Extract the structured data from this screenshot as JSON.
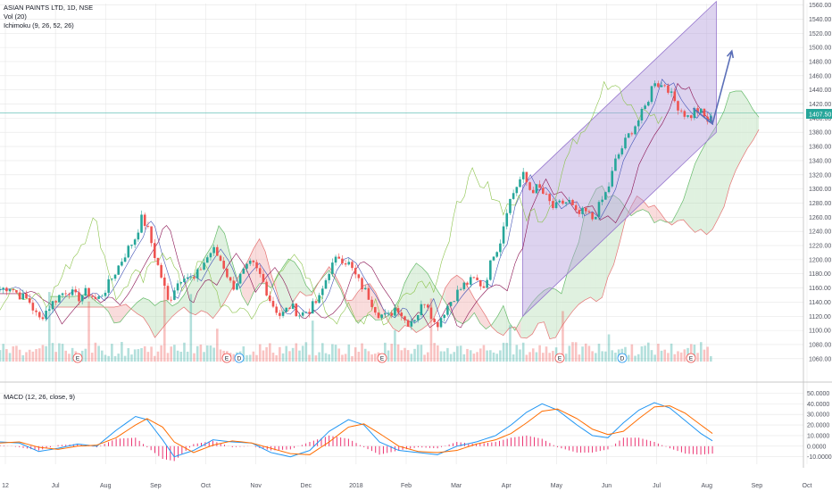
{
  "header": {
    "symbol_line": "ASIAN PAINTS LTD, 1D, NSE",
    "volume_label": "Vol (20)",
    "ichimoku_label": "Ichimoku (9, 26, 52, 26)"
  },
  "macd_panel": {
    "label": "MACD (12, 26, close, 9)"
  },
  "price_tag": "1407.50",
  "colors": {
    "up": "#26a69a",
    "down": "#ef5350",
    "channel_fill": "#b39ddb",
    "channel_stroke": "#9575cd",
    "arrow": "#5b6fb8",
    "macd_line": "#2196f3",
    "signal_line": "#ff6d00",
    "hist": "#e91e63",
    "kumo_green": "#a5d6a7",
    "kumo_red": "#ef9a9a",
    "grid": "#e6e6e6",
    "lagging": "#8bc34a"
  },
  "events": [
    {
      "letter": "E",
      "x_month": "Aug"
    },
    {
      "letter": "E",
      "x_month": "Oct"
    },
    {
      "letter": "D",
      "x_month": "Oct"
    },
    {
      "letter": "E",
      "x_month": "Feb"
    },
    {
      "letter": "E",
      "x_month": "May"
    },
    {
      "letter": "D",
      "x_month": "Jun"
    },
    {
      "letter": "E",
      "x_month": "Aug"
    }
  ],
  "chart_data": {
    "type": "candlestick",
    "price_axis": {
      "ticks": [
        "1560.00",
        "1540.00",
        "1520.00",
        "1500.00",
        "1480.00",
        "1460.00",
        "1440.00",
        "1420.00",
        "1400.00",
        "1380.00",
        "1360.00",
        "1340.00",
        "1320.00",
        "1300.00",
        "1280.00",
        "1260.00",
        "1240.00",
        "1220.00",
        "1200.00",
        "1180.00",
        "1160.00",
        "1140.00",
        "1120.00",
        "1100.00",
        "1080.00",
        "1060.00"
      ],
      "range": [
        1056,
        1562
      ]
    },
    "macd_axis": {
      "ticks": [
        "50.0000",
        "40.0000",
        "30.0000",
        "20.0000",
        "10.0000",
        "0.0000",
        "-10.0000"
      ],
      "range": [
        -17,
        52
      ]
    },
    "x_axis": {
      "labels": [
        "12",
        "Jul",
        "Aug",
        "Sep",
        "Oct",
        "Nov",
        "Dec",
        "2018",
        "Feb",
        "Mar",
        "Apr",
        "May",
        "Jun",
        "Jul",
        "Aug",
        "Sep",
        "Oct"
      ]
    },
    "price_anchors": [
      {
        "d": 0,
        "p": 1158
      },
      {
        "d": 5,
        "p": 1162
      },
      {
        "d": 10,
        "p": 1150
      },
      {
        "d": 15,
        "p": 1142
      },
      {
        "d": 20,
        "p": 1115
      },
      {
        "d": 25,
        "p": 1132
      },
      {
        "d": 30,
        "p": 1148
      },
      {
        "d": 35,
        "p": 1158
      },
      {
        "d": 40,
        "p": 1145
      },
      {
        "d": 45,
        "p": 1155
      },
      {
        "d": 50,
        "p": 1142
      },
      {
        "d": 55,
        "p": 1160
      },
      {
        "d": 60,
        "p": 1185
      },
      {
        "d": 65,
        "p": 1210
      },
      {
        "d": 70,
        "p": 1232
      },
      {
        "d": 73,
        "p": 1258
      },
      {
        "d": 76,
        "p": 1247
      },
      {
        "d": 80,
        "p": 1205
      },
      {
        "d": 84,
        "p": 1170
      },
      {
        "d": 87,
        "p": 1138
      },
      {
        "d": 90,
        "p": 1160
      },
      {
        "d": 95,
        "p": 1180
      },
      {
        "d": 100,
        "p": 1170
      },
      {
        "d": 105,
        "p": 1195
      },
      {
        "d": 110,
        "p": 1215
      },
      {
        "d": 115,
        "p": 1195
      },
      {
        "d": 120,
        "p": 1160
      },
      {
        "d": 125,
        "p": 1180
      },
      {
        "d": 130,
        "p": 1195
      },
      {
        "d": 135,
        "p": 1175
      },
      {
        "d": 140,
        "p": 1140
      },
      {
        "d": 145,
        "p": 1120
      },
      {
        "d": 150,
        "p": 1135
      },
      {
        "d": 155,
        "p": 1122
      },
      {
        "d": 160,
        "p": 1130
      },
      {
        "d": 165,
        "p": 1145
      },
      {
        "d": 170,
        "p": 1185
      },
      {
        "d": 175,
        "p": 1205
      },
      {
        "d": 180,
        "p": 1195
      },
      {
        "d": 185,
        "p": 1170
      },
      {
        "d": 190,
        "p": 1150
      },
      {
        "d": 195,
        "p": 1125
      },
      {
        "d": 200,
        "p": 1118
      },
      {
        "d": 205,
        "p": 1135
      },
      {
        "d": 210,
        "p": 1110
      },
      {
        "d": 215,
        "p": 1120
      },
      {
        "d": 220,
        "p": 1145
      },
      {
        "d": 225,
        "p": 1105
      },
      {
        "d": 230,
        "p": 1130
      },
      {
        "d": 235,
        "p": 1150
      },
      {
        "d": 240,
        "p": 1165
      },
      {
        "d": 245,
        "p": 1172
      },
      {
        "d": 250,
        "p": 1162
      },
      {
        "d": 255,
        "p": 1210
      },
      {
        "d": 258,
        "p": 1222
      },
      {
        "d": 262,
        "p": 1275
      },
      {
        "d": 266,
        "p": 1300
      },
      {
        "d": 270,
        "p": 1320
      },
      {
        "d": 274,
        "p": 1298
      },
      {
        "d": 278,
        "p": 1302
      },
      {
        "d": 282,
        "p": 1288
      },
      {
        "d": 286,
        "p": 1272
      },
      {
        "d": 290,
        "p": 1280
      },
      {
        "d": 294,
        "p": 1282
      },
      {
        "d": 298,
        "p": 1262
      },
      {
        "d": 302,
        "p": 1268
      },
      {
        "d": 306,
        "p": 1258
      },
      {
        "d": 310,
        "p": 1278
      },
      {
        "d": 314,
        "p": 1300
      },
      {
        "d": 318,
        "p": 1340
      },
      {
        "d": 322,
        "p": 1362
      },
      {
        "d": 326,
        "p": 1382
      },
      {
        "d": 330,
        "p": 1398
      },
      {
        "d": 334,
        "p": 1420
      },
      {
        "d": 338,
        "p": 1455
      },
      {
        "d": 341,
        "p": 1445
      },
      {
        "d": 344,
        "p": 1450
      },
      {
        "d": 347,
        "p": 1430
      },
      {
        "d": 350,
        "p": 1418
      },
      {
        "d": 353,
        "p": 1408
      },
      {
        "d": 356,
        "p": 1400
      },
      {
        "d": 359,
        "p": 1412
      },
      {
        "d": 362,
        "p": 1408
      },
      {
        "d": 365,
        "p": 1396
      },
      {
        "d": 368,
        "p": 1400
      }
    ],
    "channel": {
      "lower": [
        {
          "d": 270,
          "p": 1120
        },
        {
          "d": 370,
          "p": 1380
        }
      ],
      "upper": [
        {
          "d": 270,
          "p": 1305
        },
        {
          "d": 370,
          "p": 1565
        }
      ]
    },
    "projection_arrow": [
      {
        "d": 368,
        "p": 1392
      },
      {
        "d": 378,
        "p": 1495
      }
    ],
    "current_price": 1407.5,
    "macd_anchors": [
      {
        "d": 0,
        "m": 4,
        "s": 3
      },
      {
        "d": 10,
        "m": 3,
        "s": 4
      },
      {
        "d": 20,
        "m": -5,
        "s": -1
      },
      {
        "d": 30,
        "m": -2,
        "s": -3
      },
      {
        "d": 40,
        "m": 2,
        "s": 0
      },
      {
        "d": 50,
        "m": 0,
        "s": 1
      },
      {
        "d": 60,
        "m": 15,
        "s": 8
      },
      {
        "d": 70,
        "m": 28,
        "s": 20
      },
      {
        "d": 76,
        "m": 25,
        "s": 26
      },
      {
        "d": 84,
        "m": 6,
        "s": 18
      },
      {
        "d": 90,
        "m": -10,
        "s": 4
      },
      {
        "d": 100,
        "m": -4,
        "s": -6
      },
      {
        "d": 110,
        "m": 6,
        "s": 1
      },
      {
        "d": 120,
        "m": 4,
        "s": 5
      },
      {
        "d": 130,
        "m": 3,
        "s": 3
      },
      {
        "d": 140,
        "m": -6,
        "s": -2
      },
      {
        "d": 150,
        "m": -10,
        "s": -7
      },
      {
        "d": 160,
        "m": -4,
        "s": -8
      },
      {
        "d": 170,
        "m": 14,
        "s": 4
      },
      {
        "d": 180,
        "m": 25,
        "s": 18
      },
      {
        "d": 188,
        "m": 20,
        "s": 21
      },
      {
        "d": 196,
        "m": 4,
        "s": 12
      },
      {
        "d": 206,
        "m": -4,
        "s": 0
      },
      {
        "d": 216,
        "m": -6,
        "s": -5
      },
      {
        "d": 226,
        "m": -8,
        "s": -6
      },
      {
        "d": 236,
        "m": 0,
        "s": -4
      },
      {
        "d": 246,
        "m": 4,
        "s": 2
      },
      {
        "d": 256,
        "m": 10,
        "s": 6
      },
      {
        "d": 264,
        "m": 20,
        "s": 12
      },
      {
        "d": 272,
        "m": 32,
        "s": 22
      },
      {
        "d": 280,
        "m": 40,
        "s": 33
      },
      {
        "d": 288,
        "m": 34,
        "s": 35
      },
      {
        "d": 298,
        "m": 20,
        "s": 26
      },
      {
        "d": 306,
        "m": 10,
        "s": 16
      },
      {
        "d": 314,
        "m": 8,
        "s": 11
      },
      {
        "d": 322,
        "m": 22,
        "s": 14
      },
      {
        "d": 330,
        "m": 34,
        "s": 26
      },
      {
        "d": 338,
        "m": 41,
        "s": 37
      },
      {
        "d": 346,
        "m": 36,
        "s": 38
      },
      {
        "d": 354,
        "m": 24,
        "s": 31
      },
      {
        "d": 362,
        "m": 12,
        "s": 20
      },
      {
        "d": 368,
        "m": 5,
        "s": 12
      }
    ]
  }
}
